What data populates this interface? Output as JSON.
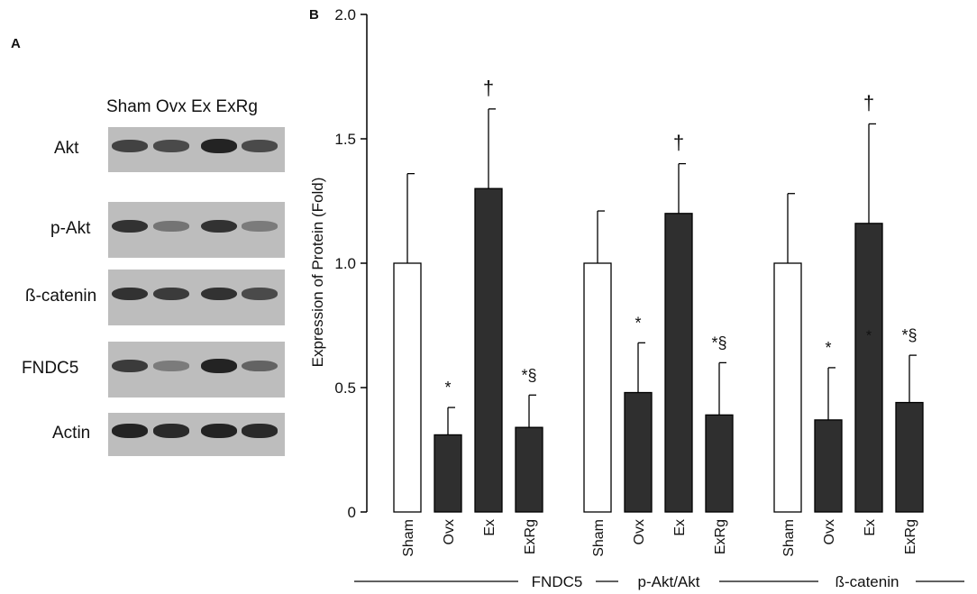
{
  "panel_a_label": "A",
  "panel_b_label": "B",
  "blot": {
    "lanes_header": "Sham Ovx Ex ExRg",
    "rows": [
      {
        "label": "Akt",
        "intensity": [
          0.75,
          0.7,
          0.95,
          0.7
        ]
      },
      {
        "label": "p-Akt",
        "intensity": [
          0.85,
          0.45,
          0.85,
          0.4
        ]
      },
      {
        "label": "ß-catenin",
        "intensity": [
          0.85,
          0.8,
          0.85,
          0.7
        ]
      },
      {
        "label": "FNDC5",
        "intensity": [
          0.8,
          0.4,
          0.95,
          0.55
        ]
      },
      {
        "label": "Actin",
        "intensity": [
          0.95,
          0.9,
          0.95,
          0.9
        ]
      }
    ]
  },
  "chart_data": {
    "type": "bar",
    "title": "",
    "ylabel": "Expression of Protein (Fold)",
    "ylim": [
      0,
      2.0
    ],
    "yticks": [
      "0",
      "0.5",
      "1.0",
      "1.5",
      "2.0"
    ],
    "categories": [
      "Sham",
      "Ovx",
      "Ex",
      "ExRg"
    ],
    "groups": [
      {
        "name": "FNDC5",
        "values": [
          1.0,
          0.31,
          1.3,
          0.34
        ],
        "errors": [
          0.36,
          0.11,
          0.32,
          0.13
        ],
        "annotations": [
          "",
          "*",
          "†",
          "*§"
        ]
      },
      {
        "name": "p-Akt/Akt",
        "values": [
          1.0,
          0.48,
          1.2,
          0.39
        ],
        "errors": [
          0.21,
          0.2,
          0.2,
          0.21
        ],
        "annotations": [
          "",
          "*",
          "†",
          "*§"
        ]
      },
      {
        "name": "ß-catenin",
        "values": [
          1.0,
          0.37,
          1.16,
          0.44
        ],
        "errors": [
          0.28,
          0.21,
          0.4,
          0.19
        ],
        "annotations": [
          "",
          "*",
          "†",
          "*§"
        ]
      }
    ],
    "extra_marks": [
      {
        "group": 2,
        "category": 2,
        "text": "*"
      }
    ],
    "colors": {
      "Sham": "#ffffff",
      "treated": "#2f2f2f",
      "stroke": "#000000"
    }
  }
}
